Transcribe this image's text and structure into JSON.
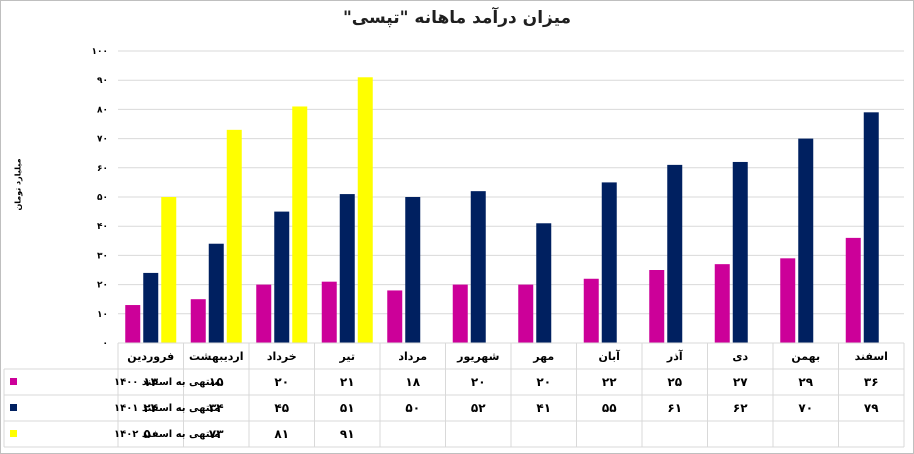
{
  "chart_data": {
    "type": "bar",
    "title": "میزان درآمد ماهانه \"تپسی\"",
    "ylabel": "میلیارد تومان",
    "ylim": [
      0,
      100
    ],
    "yticks": [
      "۰",
      "۱۰",
      "۲۰",
      "۳۰",
      "۴۰",
      "۵۰",
      "۶۰",
      "۷۰",
      "۸۰",
      "۹۰",
      "۱۰۰"
    ],
    "categories": [
      "فروردین",
      "اردیبهشت",
      "خرداد",
      "تیر",
      "مرداد",
      "شهریور",
      "مهر",
      "آبان",
      "آذر",
      "دی",
      "بهمن",
      "اسفند"
    ],
    "grid": true,
    "legend": "data-table",
    "series": [
      {
        "name": "منتهی به اسفند ۱۴۰۰",
        "color": "#CC0099",
        "values": [
          13,
          15,
          20,
          21,
          18,
          20,
          20,
          22,
          25,
          27,
          29,
          36
        ],
        "labels": [
          "۱۳",
          "۱۵",
          "۲۰",
          "۲۱",
          "۱۸",
          "۲۰",
          "۲۰",
          "۲۲",
          "۲۵",
          "۲۷",
          "۲۹",
          "۳۶"
        ]
      },
      {
        "name": "منتهی به اسفند ۱۴۰۱",
        "color": "#002060",
        "values": [
          24,
          34,
          45,
          51,
          50,
          52,
          41,
          55,
          61,
          62,
          70,
          79
        ],
        "labels": [
          "۲۴",
          "۳۴",
          "۴۵",
          "۵۱",
          "۵۰",
          "۵۲",
          "۴۱",
          "۵۵",
          "۶۱",
          "۶۲",
          "۷۰",
          "۷۹"
        ]
      },
      {
        "name": "منتهی به اسفند ۱۴۰۲",
        "color": "#FFFF00",
        "values": [
          50,
          73,
          81,
          91,
          null,
          null,
          null,
          null,
          null,
          null,
          null,
          null
        ],
        "labels": [
          "۵۰",
          "۷۳",
          "۸۱",
          "۹۱",
          "",
          "",
          "",
          "",
          "",
          "",
          "",
          ""
        ]
      }
    ]
  }
}
